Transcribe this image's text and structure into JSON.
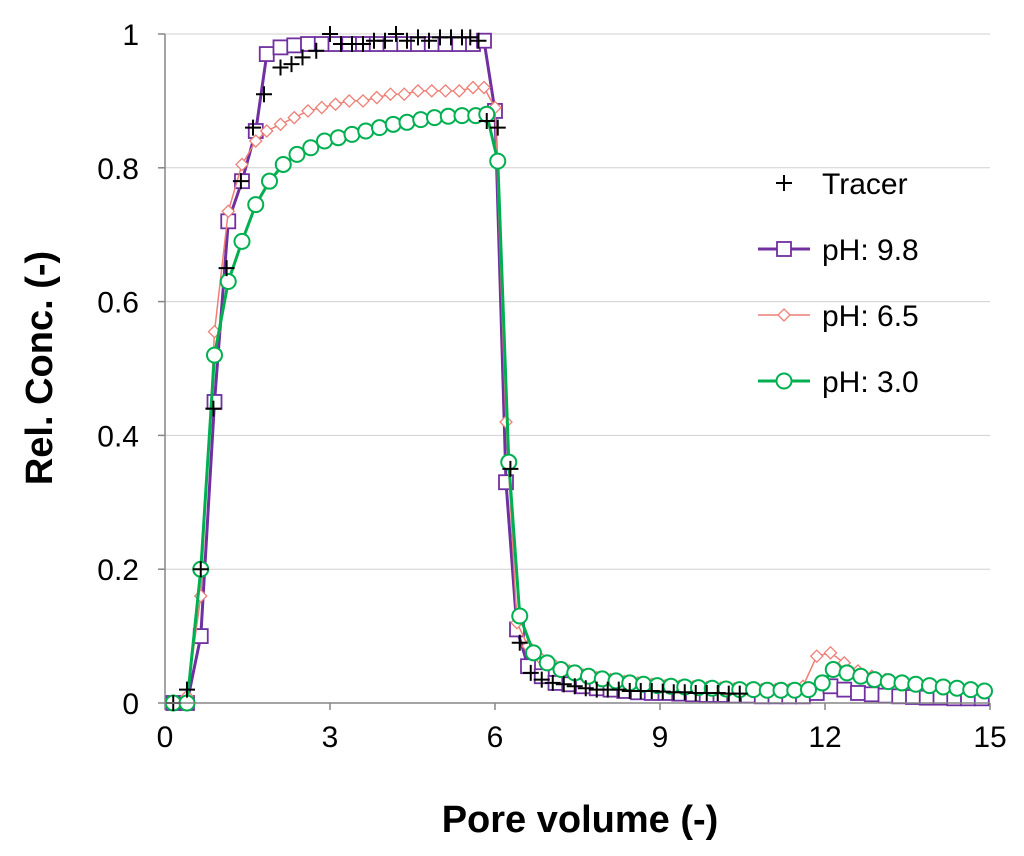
{
  "chart_data": {
    "type": "line",
    "title": "",
    "xlabel": "Pore volume (-)",
    "ylabel": "Rel. Conc. (-)",
    "xlim": [
      0,
      15
    ],
    "ylim": [
      0,
      1
    ],
    "xticks": [
      0,
      3,
      6,
      9,
      12,
      15
    ],
    "yticks": [
      0,
      0.2,
      0.4,
      0.6,
      0.8,
      1
    ],
    "xtick_labels": [
      "0",
      "3",
      "6",
      "9",
      "12",
      "15"
    ],
    "ytick_labels": [
      "0",
      "0.2",
      "0.4",
      "0.6",
      "0.8",
      "1"
    ],
    "legend_position": "right",
    "series": [
      {
        "name": "Tracer",
        "color": "#000000",
        "marker": "plus",
        "line": false,
        "x": [
          0.15,
          0.4,
          0.65,
          0.88,
          1.12,
          1.38,
          1.6,
          1.8,
          2.1,
          2.3,
          2.5,
          2.75,
          3.0,
          3.2,
          3.4,
          3.6,
          3.8,
          4.0,
          4.2,
          4.4,
          4.6,
          4.8,
          5.0,
          5.2,
          5.4,
          5.55,
          5.7,
          5.85,
          6.05,
          6.28,
          6.45,
          6.65,
          6.85,
          7.05,
          7.25,
          7.45,
          7.65,
          7.85,
          8.05,
          8.25,
          8.45,
          8.65,
          8.85,
          9.05,
          9.25,
          9.45,
          9.65,
          9.85,
          10.05,
          10.25,
          10.45
        ],
        "values": [
          0.0,
          0.02,
          0.2,
          0.44,
          0.65,
          0.78,
          0.86,
          0.91,
          0.95,
          0.955,
          0.965,
          0.975,
          1.0,
          0.985,
          0.985,
          0.985,
          0.99,
          0.99,
          1.0,
          0.99,
          0.995,
          0.99,
          0.995,
          0.995,
          0.995,
          0.995,
          0.99,
          0.87,
          0.86,
          0.35,
          0.09,
          0.045,
          0.035,
          0.03,
          0.028,
          0.025,
          0.022,
          0.02,
          0.02,
          0.02,
          0.018,
          0.018,
          0.018,
          0.017,
          0.016,
          0.016,
          0.015,
          0.015,
          0.015,
          0.014,
          0.014
        ]
      },
      {
        "name": "pH: 9.8",
        "color": "#7030a0",
        "marker": "square",
        "line": true,
        "x": [
          0.15,
          0.4,
          0.65,
          0.9,
          1.15,
          1.4,
          1.65,
          1.85,
          2.1,
          2.35,
          2.6,
          2.85,
          3.1,
          3.35,
          3.6,
          3.85,
          4.1,
          4.35,
          4.6,
          4.85,
          5.1,
          5.35,
          5.6,
          5.8,
          6.0,
          6.2,
          6.4,
          6.6,
          6.85,
          7.1,
          7.35,
          7.6,
          7.85,
          8.1,
          8.35,
          8.6,
          8.85,
          9.1,
          9.35,
          9.6,
          9.85,
          10.1,
          10.35,
          10.6,
          10.85,
          11.1,
          11.35,
          11.6,
          11.85,
          12.1,
          12.35,
          12.6,
          12.85,
          13.1,
          13.35,
          13.6,
          13.85,
          14.1,
          14.35,
          14.6,
          14.85
        ],
        "values": [
          0.0,
          0.0,
          0.1,
          0.45,
          0.72,
          0.78,
          0.855,
          0.97,
          0.98,
          0.983,
          0.985,
          0.985,
          0.985,
          0.985,
          0.985,
          0.985,
          0.985,
          0.985,
          0.985,
          0.985,
          0.985,
          0.985,
          0.985,
          0.99,
          0.885,
          0.33,
          0.11,
          0.055,
          0.04,
          0.03,
          0.028,
          0.025,
          0.022,
          0.02,
          0.018,
          0.016,
          0.015,
          0.015,
          0.014,
          0.013,
          0.012,
          0.012,
          0.011,
          0.011,
          0.01,
          0.01,
          0.01,
          0.01,
          0.015,
          0.025,
          0.02,
          0.015,
          0.013,
          0.011,
          0.01,
          0.009,
          0.008,
          0.008,
          0.007,
          0.007,
          0.007
        ]
      },
      {
        "name": "pH: 6.5",
        "color": "#ee7f76",
        "marker": "diamond",
        "line": true,
        "x": [
          0.15,
          0.4,
          0.65,
          0.9,
          1.15,
          1.4,
          1.65,
          1.85,
          2.1,
          2.35,
          2.6,
          2.85,
          3.1,
          3.35,
          3.6,
          3.85,
          4.1,
          4.35,
          4.6,
          4.85,
          5.1,
          5.35,
          5.6,
          5.8,
          6.0,
          6.2,
          6.4,
          6.6,
          6.85,
          7.1,
          7.35,
          7.6,
          7.85,
          8.1,
          8.35,
          8.6,
          8.85,
          9.1,
          9.35,
          9.6,
          9.85,
          10.1,
          10.35,
          10.6,
          10.85,
          11.1,
          11.35,
          11.6,
          11.85,
          12.1,
          12.35,
          12.6,
          12.85,
          13.1,
          13.35,
          13.6,
          13.85,
          14.1,
          14.35,
          14.6,
          14.85
        ],
        "values": [
          0.0,
          0.01,
          0.16,
          0.555,
          0.735,
          0.805,
          0.84,
          0.855,
          0.865,
          0.875,
          0.885,
          0.89,
          0.895,
          0.9,
          0.9,
          0.905,
          0.91,
          0.91,
          0.915,
          0.915,
          0.915,
          0.915,
          0.92,
          0.92,
          0.89,
          0.42,
          0.12,
          0.085,
          0.065,
          0.055,
          0.048,
          0.042,
          0.038,
          0.035,
          0.032,
          0.03,
          0.028,
          0.026,
          0.025,
          0.024,
          0.023,
          0.022,
          0.021,
          0.02,
          0.02,
          0.02,
          0.02,
          0.025,
          0.07,
          0.075,
          0.06,
          0.048,
          0.04,
          0.035,
          0.03,
          0.027,
          0.025,
          0.022,
          0.02,
          0.018,
          0.016
        ]
      },
      {
        "name": "pH: 3.0",
        "color": "#00b050",
        "marker": "circle",
        "line": true,
        "x": [
          0.15,
          0.4,
          0.65,
          0.9,
          1.15,
          1.4,
          1.65,
          1.9,
          2.15,
          2.4,
          2.65,
          2.9,
          3.15,
          3.4,
          3.65,
          3.9,
          4.15,
          4.4,
          4.65,
          4.9,
          5.15,
          5.4,
          5.65,
          5.85,
          6.05,
          6.25,
          6.45,
          6.7,
          6.95,
          7.2,
          7.45,
          7.7,
          7.95,
          8.2,
          8.45,
          8.7,
          8.95,
          9.2,
          9.45,
          9.7,
          9.95,
          10.2,
          10.45,
          10.7,
          10.95,
          11.2,
          11.45,
          11.7,
          11.95,
          12.15,
          12.4,
          12.65,
          12.9,
          13.15,
          13.4,
          13.65,
          13.9,
          14.15,
          14.4,
          14.65,
          14.9
        ],
        "values": [
          0.0,
          0.0,
          0.2,
          0.52,
          0.63,
          0.69,
          0.745,
          0.78,
          0.805,
          0.82,
          0.83,
          0.84,
          0.845,
          0.85,
          0.855,
          0.86,
          0.865,
          0.868,
          0.872,
          0.875,
          0.877,
          0.878,
          0.878,
          0.88,
          0.81,
          0.36,
          0.13,
          0.075,
          0.06,
          0.05,
          0.045,
          0.04,
          0.036,
          0.033,
          0.03,
          0.028,
          0.026,
          0.025,
          0.024,
          0.023,
          0.022,
          0.021,
          0.02,
          0.02,
          0.019,
          0.019,
          0.019,
          0.02,
          0.03,
          0.05,
          0.045,
          0.04,
          0.035,
          0.032,
          0.03,
          0.028,
          0.026,
          0.024,
          0.022,
          0.02,
          0.018
        ]
      }
    ]
  }
}
